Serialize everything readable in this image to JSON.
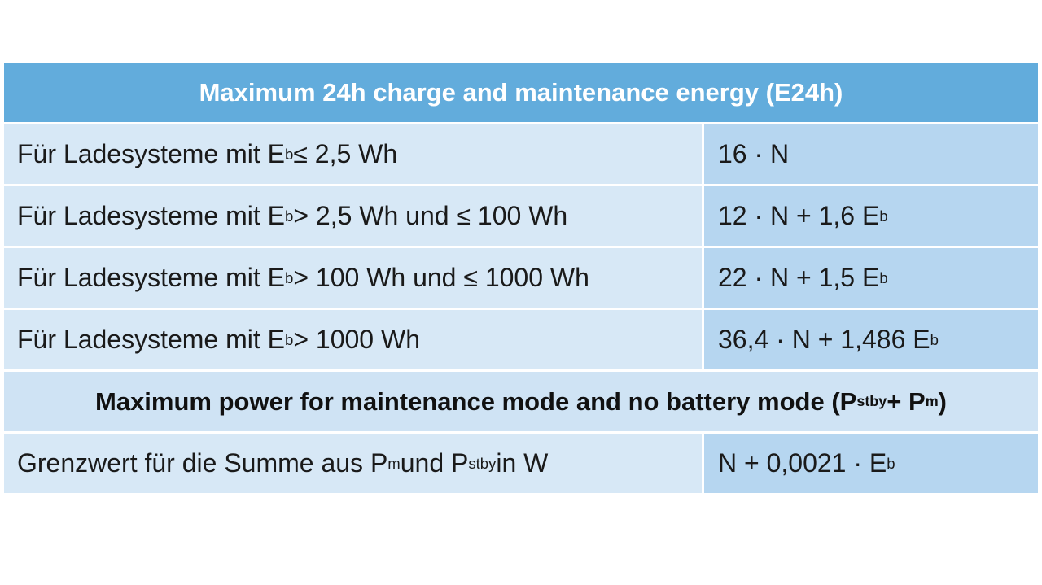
{
  "table": {
    "title": "Maximum 24h charge and maintenance energy (E24h)",
    "rows": [
      [
        [
          "Für Ladesysteme mit E",
          {
            "sub": "b"
          },
          " ≤ 2,5 Wh"
        ],
        [
          "16 · N"
        ]
      ],
      [
        [
          "Für Ladesysteme mit E",
          {
            "sub": "b"
          },
          " > 2,5 Wh und ≤ 100 Wh"
        ],
        [
          "12 · N + 1,6 E",
          {
            "sub": "b"
          }
        ]
      ],
      [
        [
          "Für Ladesysteme mit E",
          {
            "sub": "b"
          },
          " > 100 Wh und ≤ 1000 Wh"
        ],
        [
          "22 · N + 1,5 E",
          {
            "sub": "b"
          }
        ]
      ],
      [
        [
          "Für Ladesysteme mit E",
          {
            "sub": "b"
          },
          " > 1000 Wh"
        ],
        [
          "36,4 · N + 1,486 E",
          {
            "sub": "b"
          }
        ]
      ]
    ],
    "section": [
      "Maximum power for maintenance mode and no battery mode (P",
      {
        "sub": "stby"
      },
      " + P",
      {
        "sub": "m"
      },
      ")"
    ],
    "section_rows": [
      [
        [
          "Grenzwert für die Summe aus P",
          {
            "sub": "m"
          },
          " und P",
          {
            "sub": "stby"
          },
          " in W"
        ],
        [
          "N + 0,0021 · E",
          {
            "sub": "b"
          }
        ]
      ]
    ]
  }
}
